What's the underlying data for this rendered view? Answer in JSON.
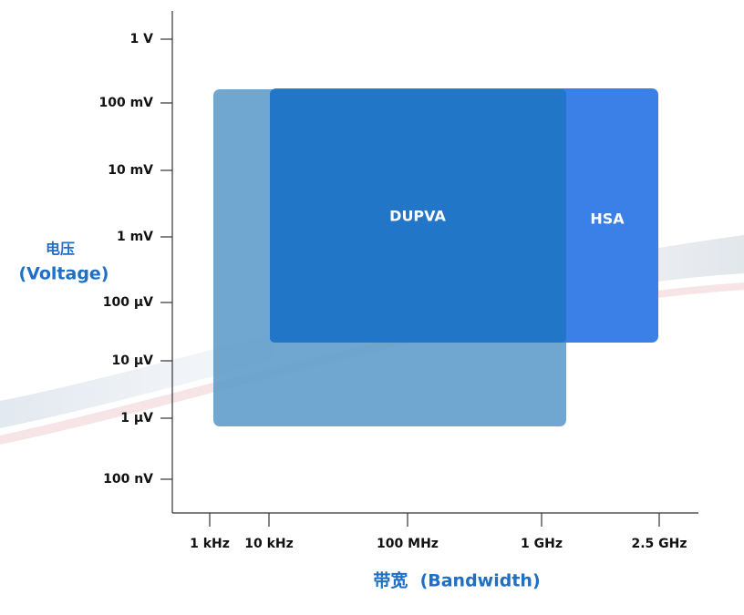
{
  "y_axis": {
    "title_cn": "电压",
    "title_en": "(Voltage)",
    "ticks": [
      "1 V",
      "100 mV",
      "10 mV",
      "1 mV",
      "100 μV",
      "10 μV",
      "1 μV",
      "100 nV"
    ]
  },
  "x_axis": {
    "title": "带宽  (Bandwidth)",
    "ticks": [
      "1 kHz",
      "10 kHz",
      "100 MHz",
      "1 GHz",
      "2.5 GHz"
    ]
  },
  "regions": [
    {
      "label": "DUPVA"
    },
    {
      "label": "HSA"
    }
  ]
}
